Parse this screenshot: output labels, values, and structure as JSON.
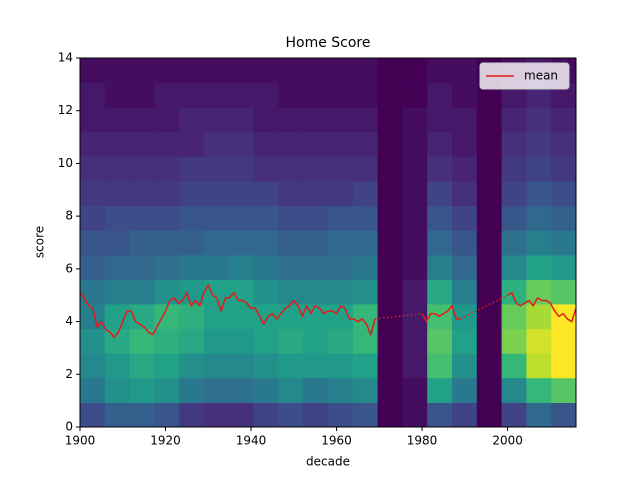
{
  "chart_data": {
    "type": "heatmap",
    "title": "Home Score",
    "xlabel": "decade",
    "ylabel": "score",
    "xlim": [
      1900,
      2016
    ],
    "ylim": [
      0,
      14
    ],
    "xticks": [
      1900,
      1920,
      1940,
      1960,
      1980,
      2000
    ],
    "yticks": [
      0,
      2,
      4,
      6,
      8,
      10,
      12,
      14
    ],
    "colormap": "viridis",
    "xbins": [
      1900,
      1905.8,
      1911.6,
      1917.4,
      1923.2,
      1929,
      1934.8,
      1940.6,
      1946.4,
      1952.2,
      1958,
      1963.8,
      1969.6,
      1975.4,
      1981.2,
      1987,
      1992.8,
      1998.6,
      2004.4,
      2010.2,
      2016
    ],
    "ybins": [
      0,
      0.93,
      1.87,
      2.8,
      3.73,
      4.67,
      5.6,
      6.53,
      7.47,
      8.4,
      9.33,
      10.27,
      11.2,
      12.13,
      13.07,
      14
    ],
    "counts": [
      [
        7,
        9,
        9,
        8,
        5,
        4,
        4,
        6,
        7,
        6,
        7,
        8,
        0,
        1,
        8,
        6,
        0,
        6,
        10,
        8
      ],
      [
        12,
        15,
        16,
        15,
        12,
        11,
        11,
        12,
        14,
        12,
        13,
        14,
        0,
        1,
        17,
        12,
        0,
        14,
        20,
        22
      ],
      [
        14,
        16,
        18,
        17,
        15,
        14,
        14,
        15,
        16,
        16,
        16,
        17,
        0,
        2,
        21,
        15,
        0,
        20,
        27,
        30
      ],
      [
        15,
        18,
        20,
        19,
        18,
        16,
        16,
        17,
        18,
        17,
        18,
        20,
        0,
        2,
        22,
        17,
        0,
        24,
        28,
        30
      ],
      [
        13,
        17,
        18,
        20,
        19,
        17,
        17,
        17,
        17,
        17,
        17,
        20,
        0,
        2,
        21,
        16,
        0,
        23,
        26,
        30
      ],
      [
        12,
        13,
        13,
        15,
        16,
        17,
        17,
        15,
        14,
        14,
        14,
        15,
        0,
        2,
        18,
        13,
        0,
        19,
        23,
        22
      ],
      [
        9,
        10,
        10,
        11,
        12,
        12,
        13,
        12,
        11,
        11,
        11,
        12,
        0,
        1,
        13,
        10,
        0,
        14,
        17,
        16
      ],
      [
        8,
        8,
        9,
        9,
        9,
        10,
        10,
        10,
        9,
        9,
        10,
        10,
        0,
        1,
        10,
        8,
        0,
        11,
        13,
        12
      ],
      [
        6,
        7,
        7,
        7,
        8,
        8,
        8,
        8,
        7,
        7,
        8,
        8,
        0,
        1,
        8,
        6,
        0,
        8,
        10,
        9
      ],
      [
        5,
        5,
        5,
        5,
        6,
        6,
        6,
        6,
        5,
        5,
        5,
        6,
        0,
        1,
        6,
        4,
        0,
        6,
        8,
        7
      ],
      [
        4,
        4,
        4,
        4,
        5,
        5,
        5,
        4,
        4,
        4,
        4,
        4,
        0,
        1,
        4,
        3,
        0,
        5,
        6,
        5
      ],
      [
        3,
        3,
        3,
        3,
        3,
        4,
        4,
        3,
        3,
        3,
        3,
        3,
        0,
        1,
        3,
        2,
        0,
        4,
        5,
        4
      ],
      [
        2,
        2,
        2,
        2,
        3,
        3,
        3,
        2,
        2,
        2,
        2,
        2,
        0,
        1,
        2,
        2,
        0,
        3,
        4,
        3
      ],
      [
        2,
        1,
        1,
        2,
        2,
        2,
        2,
        2,
        1,
        1,
        1,
        1,
        0,
        0,
        2,
        1,
        0,
        2,
        3,
        2
      ],
      [
        1,
        1,
        1,
        1,
        1,
        1,
        1,
        1,
        1,
        1,
        1,
        1,
        0,
        0,
        1,
        1,
        0,
        1,
        2,
        1
      ]
    ],
    "series": [
      {
        "name": "mean",
        "color": "#e41a1c",
        "gap_style": "dotted",
        "x": [
          1900,
          1901,
          1902,
          1903,
          1904,
          1905,
          1906,
          1907,
          1908,
          1909,
          1910,
          1911,
          1912,
          1913,
          1914,
          1915,
          1916,
          1917,
          1918,
          1919,
          1920,
          1921,
          1922,
          1923,
          1924,
          1925,
          1926,
          1927,
          1928,
          1929,
          1930,
          1931,
          1932,
          1933,
          1934,
          1935,
          1936,
          1937,
          1938,
          1939,
          1940,
          1941,
          1942,
          1943,
          1944,
          1945,
          1946,
          1947,
          1948,
          1949,
          1950,
          1951,
          1952,
          1953,
          1954,
          1955,
          1956,
          1957,
          1958,
          1959,
          1960,
          1961,
          1962,
          1963,
          1964,
          1965,
          1966,
          1967,
          1968,
          1969,
          1970,
          1971,
          1972,
          1973,
          1974,
          1975,
          1976,
          1977,
          1978,
          1979,
          1980,
          1981,
          1982,
          1983,
          1984,
          1985,
          1986,
          1987,
          1988,
          1989,
          1990,
          1991,
          1992,
          1993,
          1994,
          1995,
          1996,
          1997,
          1998,
          1999,
          2000,
          2001,
          2002,
          2003,
          2004,
          2005,
          2006,
          2007,
          2008,
          2009,
          2010,
          2011,
          2012,
          2013,
          2014,
          2015,
          2016
        ],
        "values": [
          5.1,
          4.9,
          4.6,
          4.5,
          3.8,
          4.0,
          3.7,
          3.6,
          3.4,
          3.6,
          4.0,
          4.4,
          4.4,
          4.0,
          3.9,
          3.8,
          3.6,
          3.5,
          3.8,
          4.1,
          4.4,
          4.8,
          4.9,
          4.7,
          4.8,
          5.1,
          4.6,
          4.8,
          4.6,
          5.1,
          5.4,
          5.0,
          4.9,
          4.4,
          4.9,
          4.9,
          5.1,
          4.8,
          4.8,
          4.7,
          4.5,
          4.5,
          4.2,
          3.9,
          4.2,
          4.3,
          4.1,
          4.3,
          4.5,
          4.6,
          4.8,
          4.6,
          4.2,
          4.6,
          4.3,
          4.6,
          4.5,
          4.3,
          4.4,
          4.4,
          4.3,
          4.6,
          4.5,
          4.1,
          4.1,
          4.0,
          4.1,
          3.9,
          3.5,
          4.1,
          null,
          null,
          null,
          null,
          null,
          null,
          null,
          null,
          null,
          null,
          4.3,
          4.0,
          4.3,
          4.3,
          4.2,
          4.3,
          4.4,
          4.6,
          4.1,
          4.1,
          null,
          null,
          null,
          null,
          null,
          null,
          null,
          null,
          null,
          null,
          5.0,
          5.1,
          4.7,
          4.6,
          4.7,
          4.8,
          4.6,
          4.9,
          4.8,
          4.8,
          4.7,
          4.4,
          4.2,
          4.3,
          4.1,
          4.0,
          4.5
        ]
      }
    ],
    "legend": "upper right"
  }
}
